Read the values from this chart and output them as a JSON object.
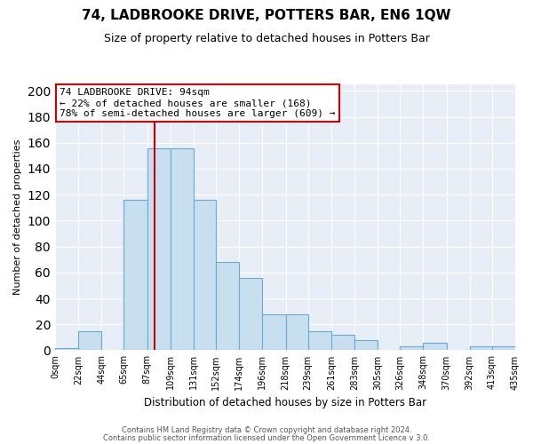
{
  "title": "74, LADBROOKE DRIVE, POTTERS BAR, EN6 1QW",
  "subtitle": "Size of property relative to detached houses in Potters Bar",
  "xlabel": "Distribution of detached houses by size in Potters Bar",
  "ylabel": "Number of detached properties",
  "footer_lines": [
    "Contains HM Land Registry data © Crown copyright and database right 2024.",
    "Contains public sector information licensed under the Open Government Licence v 3.0."
  ],
  "bin_edges": [
    0,
    22,
    44,
    65,
    87,
    109,
    131,
    152,
    174,
    196,
    218,
    239,
    261,
    283,
    305,
    326,
    348,
    370,
    392,
    413,
    435
  ],
  "bin_labels": [
    "0sqm",
    "22sqm",
    "44sqm",
    "65sqm",
    "87sqm",
    "109sqm",
    "131sqm",
    "152sqm",
    "174sqm",
    "196sqm",
    "218sqm",
    "239sqm",
    "261sqm",
    "283sqm",
    "305sqm",
    "326sqm",
    "348sqm",
    "370sqm",
    "392sqm",
    "413sqm",
    "435sqm"
  ],
  "bar_heights": [
    2,
    15,
    0,
    116,
    156,
    156,
    116,
    68,
    56,
    28,
    28,
    15,
    12,
    8,
    0,
    3,
    6,
    0,
    3,
    3
  ],
  "bar_color": "#c8dff0",
  "bar_edge_color": "#6aaad4",
  "vline_x": 94,
  "vline_color": "#cc0000",
  "annotation_text_line1": "74 LADBROOKE DRIVE: 94sqm",
  "annotation_text_line2": "← 22% of detached houses are smaller (168)",
  "annotation_text_line3": "78% of semi-detached houses are larger (609) →",
  "ylim": [
    0,
    205
  ],
  "yticks": [
    0,
    20,
    40,
    60,
    80,
    100,
    120,
    140,
    160,
    180,
    200
  ],
  "plot_bg_color": "#e8eef8",
  "fig_bg_color": "#ffffff",
  "grid_color": "#ffffff",
  "title_fontsize": 11,
  "subtitle_fontsize": 9
}
